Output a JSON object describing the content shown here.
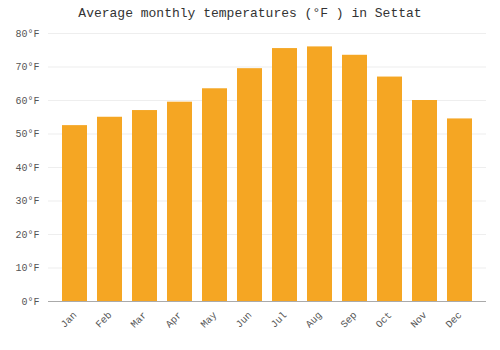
{
  "chart_data": {
    "type": "bar",
    "title": "Average monthly temperatures (°F ) in Settat",
    "categories": [
      "Jan",
      "Feb",
      "Mar",
      "Apr",
      "May",
      "Jun",
      "Jul",
      "Aug",
      "Sep",
      "Oct",
      "Nov",
      "Dec"
    ],
    "values": [
      52.5,
      55.0,
      57.0,
      59.5,
      63.5,
      69.5,
      75.5,
      76.0,
      73.5,
      67.0,
      60.0,
      54.5
    ],
    "color": "#F5A623",
    "ylim": [
      0,
      80
    ],
    "yticks": [
      {
        "value": 0,
        "label": "0°F"
      },
      {
        "value": 10,
        "label": "10°F"
      },
      {
        "value": 20,
        "label": "20°F"
      },
      {
        "value": 30,
        "label": "30°F"
      },
      {
        "value": 40,
        "label": "40°F"
      },
      {
        "value": 50,
        "label": "50°F"
      },
      {
        "value": 60,
        "label": "60°F"
      },
      {
        "value": 70,
        "label": "70°F"
      },
      {
        "value": 80,
        "label": "80°F"
      }
    ],
    "grid": true
  }
}
